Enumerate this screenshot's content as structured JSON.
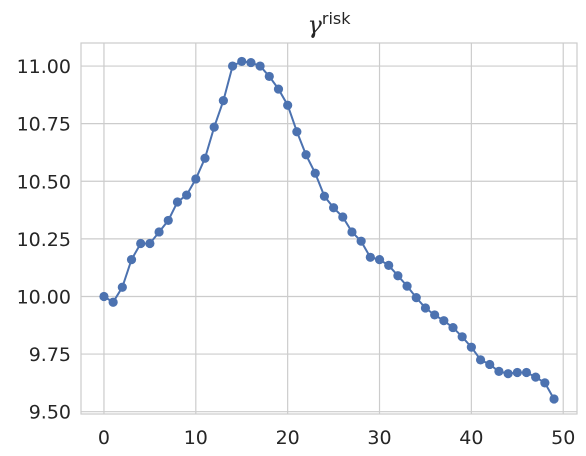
{
  "chart_data": {
    "type": "line",
    "title": "γ",
    "title_superscript": "risk",
    "xlabel": "",
    "ylabel": "",
    "xlim": [
      -2.5,
      51.5
    ],
    "ylim": [
      9.49,
      11.1
    ],
    "xticks": [
      0,
      10,
      20,
      30,
      40,
      50
    ],
    "yticks": [
      9.5,
      9.75,
      10.0,
      10.25,
      10.5,
      10.75,
      11.0
    ],
    "ytick_labels": [
      "9.50",
      "9.75",
      "10.00",
      "10.25",
      "10.50",
      "10.75",
      "11.00"
    ],
    "grid": true,
    "line_color": "#4c72b0",
    "series": [
      {
        "x": [
          0,
          1,
          2,
          3,
          4,
          5,
          6,
          7,
          8,
          9,
          10,
          11,
          12,
          13,
          14,
          15,
          16,
          17,
          18,
          19,
          20,
          21,
          22,
          23,
          24,
          25,
          26,
          27,
          28,
          29,
          30,
          31,
          32,
          33,
          34,
          35,
          36,
          37,
          38,
          39,
          40,
          41,
          42,
          43,
          44,
          45,
          46,
          47,
          48,
          49
        ],
        "values": [
          10.0,
          9.975,
          10.04,
          10.16,
          10.23,
          10.23,
          10.28,
          10.33,
          10.41,
          10.44,
          10.51,
          10.6,
          10.735,
          10.85,
          11.0,
          11.02,
          11.015,
          11.0,
          10.955,
          10.9,
          10.83,
          10.715,
          10.615,
          10.535,
          10.435,
          10.385,
          10.345,
          10.28,
          10.24,
          10.17,
          10.16,
          10.135,
          10.09,
          10.045,
          9.995,
          9.95,
          9.92,
          9.895,
          9.865,
          9.825,
          9.78,
          9.725,
          9.705,
          9.675,
          9.665,
          9.67,
          9.67,
          9.65,
          9.625,
          9.555
        ]
      }
    ]
  }
}
